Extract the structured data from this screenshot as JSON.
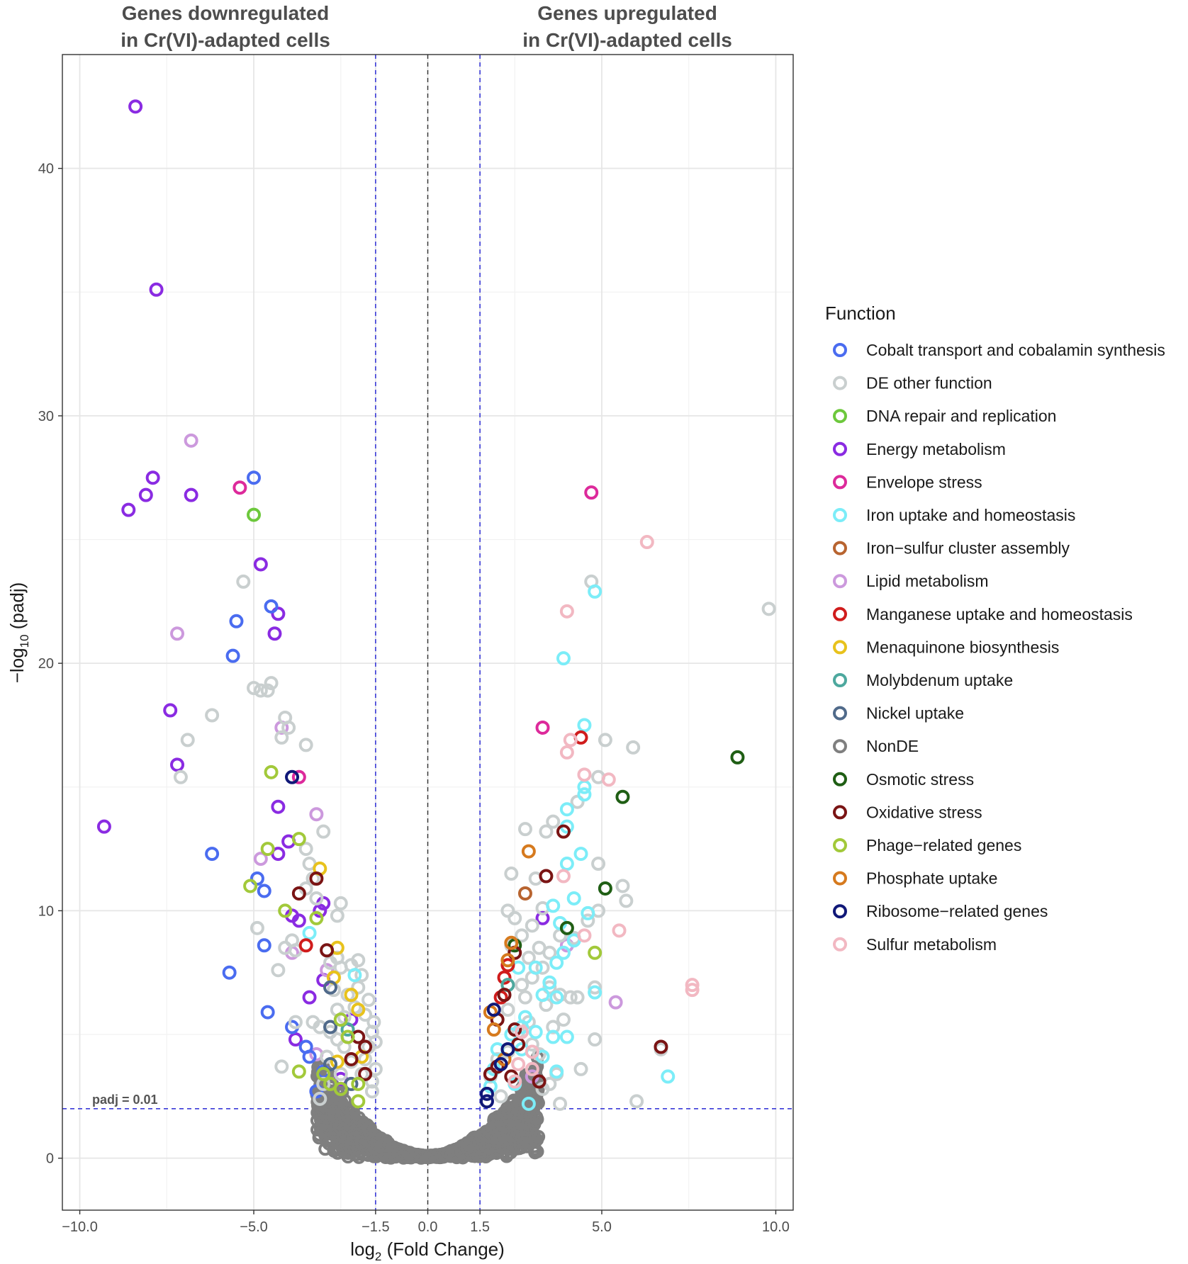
{
  "chart_data": {
    "type": "scatter",
    "subtype": "volcano",
    "header_left": [
      "Genes downregulated",
      "in Cr(VI)-adapted cells"
    ],
    "header_right": [
      "Genes upregulated",
      "in Cr(VI)-adapted cells"
    ],
    "xlabel": {
      "pre": "log",
      "sub": "2",
      "post": " (Fold Change)"
    },
    "ylabel": {
      "pre": "−log",
      "sub": "10",
      "post": " (padj)"
    },
    "xlim": [
      -10.5,
      10.5
    ],
    "ylim": [
      -2.1,
      44.6
    ],
    "x_ticks": [
      {
        "v": -10,
        "label": "−10.0"
      },
      {
        "v": -5,
        "label": "−5.0"
      },
      {
        "v": -1.5,
        "label": "−1.5"
      },
      {
        "v": 0,
        "label": "0.0"
      },
      {
        "v": 1.5,
        "label": "1.5"
      },
      {
        "v": 5,
        "label": "5.0"
      },
      {
        "v": 10,
        "label": "10.0"
      }
    ],
    "y_ticks": [
      {
        "v": 0,
        "label": "0"
      },
      {
        "v": 10,
        "label": "10"
      },
      {
        "v": 20,
        "label": "20"
      },
      {
        "v": 30,
        "label": "30"
      },
      {
        "v": 40,
        "label": "40"
      }
    ],
    "x_minor": [
      -7.5,
      -2.5,
      2.5,
      7.5
    ],
    "y_minor": [
      5,
      15,
      25,
      35
    ],
    "threshold_lines": {
      "fold_change": [
        -1.5,
        1.5
      ],
      "padj": 2,
      "center": 0
    },
    "threshold_label": "padj = 0.01",
    "legend_title": "Function",
    "categories": [
      {
        "name": "Cobalt transport and cobalamin synthesis",
        "color": "#4A6CF0"
      },
      {
        "name": "DE other function",
        "color": "#C9CFCF"
      },
      {
        "name": "DNA repair and replication",
        "color": "#6DC83C"
      },
      {
        "name": "Energy metabolism",
        "color": "#8A2BE2"
      },
      {
        "name": "Envelope stress",
        "color": "#DD2A9B"
      },
      {
        "name": "Iron uptake and homeostasis",
        "color": "#7CEDF8"
      },
      {
        "name": "Iron−sulfur cluster assembly",
        "color": "#B86430"
      },
      {
        "name": "Lipid metabolism",
        "color": "#CC99DD"
      },
      {
        "name": "Manganese uptake and homeostasis",
        "color": "#D01C1C"
      },
      {
        "name": "Menaquinone biosynthesis",
        "color": "#E8C21C"
      },
      {
        "name": "Molybdenum uptake",
        "color": "#4DA89E"
      },
      {
        "name": "Nickel uptake",
        "color": "#506A8A"
      },
      {
        "name": "NonDE",
        "color": "#7F7F7F"
      },
      {
        "name": "Osmotic stress",
        "color": "#1F5E14"
      },
      {
        "name": "Oxidative stress",
        "color": "#7A1414"
      },
      {
        "name": "Phage−related genes",
        "color": "#A2C93A"
      },
      {
        "name": "Phosphate uptake",
        "color": "#D67A1E"
      },
      {
        "name": "Ribosome−related genes",
        "color": "#101878"
      },
      {
        "name": "Sulfur metabolism",
        "color": "#F2B8C2"
      }
    ],
    "points": [
      [
        -8.4,
        42.5,
        3
      ],
      [
        -7.8,
        35.1,
        3
      ],
      [
        -8.6,
        26.2,
        3
      ],
      [
        -8.1,
        26.8,
        3
      ],
      [
        -7.9,
        27.5,
        3
      ],
      [
        -6.8,
        26.8,
        3
      ],
      [
        -9.3,
        13.4,
        3
      ],
      [
        -7.4,
        18.1,
        3
      ],
      [
        -7.2,
        15.9,
        3
      ],
      [
        -4.3,
        22.0,
        3
      ],
      [
        -4.8,
        24.0,
        3
      ],
      [
        -4.4,
        21.2,
        3
      ],
      [
        -4.3,
        14.2,
        3
      ],
      [
        -4.0,
        12.8,
        3
      ],
      [
        -4.3,
        12.3,
        3
      ],
      [
        -3.9,
        9.8,
        3
      ],
      [
        -3.7,
        9.6,
        3
      ],
      [
        -3.0,
        10.3,
        3
      ],
      [
        -3.1,
        10.0,
        3
      ],
      [
        -3.4,
        6.5,
        3
      ],
      [
        -3.0,
        7.2,
        3
      ],
      [
        -2.2,
        5.6,
        3
      ],
      [
        -3.8,
        4.8,
        3
      ],
      [
        -2.5,
        3.2,
        3
      ],
      [
        3.3,
        9.7,
        3
      ],
      [
        -6.8,
        29.0,
        7
      ],
      [
        -7.2,
        21.2,
        7
      ],
      [
        -4.2,
        17.4,
        7
      ],
      [
        -3.2,
        13.9,
        7
      ],
      [
        -4.8,
        12.1,
        7
      ],
      [
        -3.9,
        8.3,
        7
      ],
      [
        -3.2,
        4.2,
        7
      ],
      [
        -2.9,
        7.6,
        7
      ],
      [
        4.0,
        8.6,
        7
      ],
      [
        5.4,
        6.3,
        7
      ],
      [
        3.0,
        3.3,
        7
      ],
      [
        -5.0,
        27.5,
        0
      ],
      [
        -5.5,
        21.7,
        0
      ],
      [
        -5.6,
        20.3,
        0
      ],
      [
        -4.5,
        22.3,
        0
      ],
      [
        -6.2,
        12.3,
        0
      ],
      [
        -4.9,
        11.3,
        0
      ],
      [
        -4.7,
        10.8,
        0
      ],
      [
        -4.7,
        8.6,
        0
      ],
      [
        -5.7,
        7.5,
        0
      ],
      [
        -4.6,
        5.9,
        0
      ],
      [
        -3.9,
        5.3,
        0
      ],
      [
        -3.5,
        4.5,
        0
      ],
      [
        -3.4,
        4.1,
        0
      ],
      [
        -3.2,
        2.7,
        0
      ],
      [
        -3.0,
        3.5,
        0
      ],
      [
        -5.3,
        23.3,
        1
      ],
      [
        -5.0,
        19.0,
        1
      ],
      [
        -4.8,
        18.9,
        1
      ],
      [
        -4.5,
        19.2,
        1
      ],
      [
        -4.6,
        18.9,
        1
      ],
      [
        -6.2,
        17.9,
        1
      ],
      [
        -6.9,
        16.9,
        1
      ],
      [
        -7.1,
        15.4,
        1
      ],
      [
        -4.1,
        17.8,
        1
      ],
      [
        -4.0,
        17.4,
        1
      ],
      [
        -4.2,
        17.0,
        1
      ],
      [
        -3.5,
        16.7,
        1
      ],
      [
        -3.0,
        13.2,
        1
      ],
      [
        -3.5,
        12.5,
        1
      ],
      [
        -3.4,
        11.9,
        1
      ],
      [
        -3.3,
        11.3,
        1
      ],
      [
        -3.5,
        10.9,
        1
      ],
      [
        -3.2,
        10.5,
        1
      ],
      [
        -2.5,
        10.3,
        1
      ],
      [
        -2.6,
        9.8,
        1
      ],
      [
        -4.9,
        9.3,
        1
      ],
      [
        -3.9,
        8.8,
        1
      ],
      [
        -4.1,
        8.5,
        1
      ],
      [
        -3.8,
        8.4,
        1
      ],
      [
        -4.3,
        7.6,
        1
      ],
      [
        -2.6,
        8.1,
        1
      ],
      [
        -2.5,
        7.7,
        1
      ],
      [
        -2.8,
        7.9,
        1
      ],
      [
        -2.2,
        7.8,
        1
      ],
      [
        -2.0,
        8.0,
        1
      ],
      [
        -1.9,
        7.4,
        1
      ],
      [
        -2.0,
        6.9,
        1
      ],
      [
        -2.3,
        6.6,
        1
      ],
      [
        -2.7,
        6.8,
        1
      ],
      [
        -1.7,
        6.4,
        1
      ],
      [
        -2.1,
        6.1,
        1
      ],
      [
        -1.8,
        5.8,
        1
      ],
      [
        -2.6,
        6.0,
        1
      ],
      [
        -2.4,
        5.7,
        1
      ],
      [
        -3.8,
        5.5,
        1
      ],
      [
        -3.3,
        5.5,
        1
      ],
      [
        -3.1,
        5.3,
        1
      ],
      [
        -2.8,
        5.1,
        1
      ],
      [
        -2.6,
        4.8,
        1
      ],
      [
        -1.6,
        5.1,
        1
      ],
      [
        -2.4,
        4.5,
        1
      ],
      [
        -2.9,
        4.1,
        1
      ],
      [
        -2.2,
        3.9,
        1
      ],
      [
        -1.8,
        4.0,
        1
      ],
      [
        -4.2,
        3.7,
        1
      ],
      [
        -2.5,
        3.4,
        1
      ],
      [
        -3.0,
        3.0,
        1
      ],
      [
        -3.1,
        2.4,
        1
      ],
      [
        -1.6,
        2.7,
        1
      ],
      [
        -1.9,
        3.4,
        1
      ],
      [
        -1.7,
        4.5,
        1
      ],
      [
        -1.5,
        4.7,
        1
      ],
      [
        -1.55,
        5.5,
        1
      ],
      [
        -1.5,
        3.6,
        1
      ],
      [
        -1.6,
        3.1,
        1
      ],
      [
        4.7,
        23.3,
        1
      ],
      [
        5.1,
        16.9,
        1
      ],
      [
        5.9,
        16.6,
        1
      ],
      [
        4.9,
        15.4,
        1
      ],
      [
        4.3,
        14.4,
        1
      ],
      [
        3.6,
        13.6,
        1
      ],
      [
        2.8,
        13.3,
        1
      ],
      [
        3.4,
        13.2,
        1
      ],
      [
        2.4,
        11.5,
        1
      ],
      [
        3.1,
        11.3,
        1
      ],
      [
        4.9,
        11.9,
        1
      ],
      [
        5.6,
        11.0,
        1
      ],
      [
        5.7,
        10.4,
        1
      ],
      [
        2.3,
        10.0,
        1
      ],
      [
        2.5,
        9.7,
        1
      ],
      [
        3.0,
        9.4,
        1
      ],
      [
        3.3,
        10.1,
        1
      ],
      [
        4.6,
        9.6,
        1
      ],
      [
        4.9,
        10.0,
        1
      ],
      [
        3.8,
        9.0,
        1
      ],
      [
        2.7,
        9.0,
        1
      ],
      [
        3.2,
        8.5,
        1
      ],
      [
        3.5,
        8.3,
        1
      ],
      [
        2.9,
        8.1,
        1
      ],
      [
        2.4,
        8.6,
        1
      ],
      [
        4.2,
        8.9,
        1
      ],
      [
        3.3,
        7.7,
        1
      ],
      [
        3.5,
        6.9,
        1
      ],
      [
        3.0,
        7.3,
        1
      ],
      [
        2.7,
        7.0,
        1
      ],
      [
        3.8,
        6.6,
        1
      ],
      [
        4.3,
        6.5,
        1
      ],
      [
        4.1,
        6.5,
        1
      ],
      [
        4.8,
        6.9,
        1
      ],
      [
        3.4,
        6.2,
        1
      ],
      [
        2.8,
        6.5,
        1
      ],
      [
        2.3,
        6.0,
        1
      ],
      [
        3.9,
        5.6,
        1
      ],
      [
        3.6,
        5.3,
        1
      ],
      [
        2.9,
        5.5,
        1
      ],
      [
        2.6,
        5.1,
        1
      ],
      [
        3.0,
        4.6,
        1
      ],
      [
        2.3,
        4.3,
        1
      ],
      [
        3.2,
        4.2,
        1
      ],
      [
        4.8,
        4.8,
        1
      ],
      [
        4.4,
        3.6,
        1
      ],
      [
        3.7,
        3.4,
        1
      ],
      [
        3.5,
        3.0,
        1
      ],
      [
        3.3,
        2.8,
        1
      ],
      [
        2.1,
        2.5,
        1
      ],
      [
        3.8,
        2.2,
        1
      ],
      [
        1.8,
        3.3,
        1
      ],
      [
        2.0,
        4.0,
        1
      ],
      [
        9.8,
        22.2,
        1
      ],
      [
        6.0,
        2.3,
        1
      ],
      [
        6.7,
        4.4,
        1
      ],
      [
        -5.0,
        26.0,
        2
      ],
      [
        -5.4,
        27.1,
        4
      ],
      [
        -3.7,
        15.4,
        4
      ],
      [
        3.3,
        17.4,
        4
      ],
      [
        4.7,
        26.9,
        4
      ],
      [
        -3.4,
        9.1,
        5
      ],
      [
        -2.1,
        7.4,
        5
      ],
      [
        4.8,
        22.9,
        5
      ],
      [
        3.9,
        20.2,
        5
      ],
      [
        4.5,
        17.5,
        5
      ],
      [
        4.5,
        15.0,
        5
      ],
      [
        4.5,
        14.7,
        5
      ],
      [
        4.0,
        14.1,
        5
      ],
      [
        4.0,
        13.4,
        5
      ],
      [
        4.4,
        12.3,
        5
      ],
      [
        4.0,
        11.9,
        5
      ],
      [
        3.6,
        10.2,
        5
      ],
      [
        4.2,
        10.5,
        5
      ],
      [
        4.6,
        9.9,
        5
      ],
      [
        3.8,
        9.5,
        5
      ],
      [
        3.9,
        8.3,
        5
      ],
      [
        3.7,
        7.9,
        5
      ],
      [
        3.1,
        7.7,
        5
      ],
      [
        2.6,
        7.7,
        5
      ],
      [
        3.5,
        7.1,
        5
      ],
      [
        4.2,
        8.8,
        5
      ],
      [
        3.3,
        6.6,
        5
      ],
      [
        3.7,
        6.5,
        5
      ],
      [
        4.8,
        6.7,
        5
      ],
      [
        2.8,
        5.7,
        5
      ],
      [
        2.7,
        5.3,
        5
      ],
      [
        3.1,
        5.1,
        5
      ],
      [
        2.4,
        5.0,
        5
      ],
      [
        3.6,
        4.9,
        5
      ],
      [
        2.7,
        4.4,
        5
      ],
      [
        3.3,
        4.1,
        5
      ],
      [
        2.2,
        4.0,
        5
      ],
      [
        4.0,
        4.9,
        5
      ],
      [
        3.7,
        3.5,
        5
      ],
      [
        2.5,
        3.0,
        5
      ],
      [
        2.9,
        2.2,
        5
      ],
      [
        1.8,
        2.9,
        5
      ],
      [
        1.9,
        3.6,
        5
      ],
      [
        2.0,
        4.4,
        5
      ],
      [
        6.9,
        3.3,
        5
      ],
      [
        2.8,
        10.7,
        6
      ],
      [
        -3.5,
        8.6,
        8
      ],
      [
        4.4,
        17.0,
        8
      ],
      [
        2.3,
        7.8,
        8
      ],
      [
        2.2,
        7.3,
        8
      ],
      [
        2.1,
        6.5,
        8
      ],
      [
        -3.1,
        11.7,
        9
      ],
      [
        -2.6,
        8.5,
        9
      ],
      [
        -2.7,
        7.3,
        9
      ],
      [
        -2.2,
        6.6,
        9
      ],
      [
        -2.0,
        6.0,
        9
      ],
      [
        -1.9,
        4.1,
        9
      ],
      [
        -2.6,
        3.9,
        9
      ],
      [
        -2.3,
        5.2,
        10
      ],
      [
        2.3,
        7.0,
        10
      ],
      [
        -2.8,
        6.9,
        11
      ],
      [
        -2.8,
        5.3,
        11
      ],
      [
        -2.8,
        3.8,
        11
      ],
      [
        -2.2,
        3.0,
        11
      ],
      [
        8.9,
        16.2,
        13
      ],
      [
        5.6,
        14.6,
        13
      ],
      [
        5.1,
        10.9,
        13
      ],
      [
        4.0,
        9.3,
        13
      ],
      [
        2.5,
        8.6,
        13
      ],
      [
        -3.7,
        10.7,
        14
      ],
      [
        -3.2,
        11.3,
        14
      ],
      [
        -2.9,
        8.4,
        14
      ],
      [
        -2.0,
        4.9,
        14
      ],
      [
        -2.2,
        4.0,
        14
      ],
      [
        -1.8,
        3.4,
        14
      ],
      [
        -1.8,
        4.5,
        14
      ],
      [
        3.4,
        11.4,
        14
      ],
      [
        3.9,
        13.2,
        14
      ],
      [
        2.5,
        8.3,
        14
      ],
      [
        2.2,
        6.6,
        14
      ],
      [
        2.5,
        5.2,
        14
      ],
      [
        2.0,
        5.6,
        14
      ],
      [
        2.6,
        4.6,
        14
      ],
      [
        2.4,
        3.3,
        14
      ],
      [
        3.2,
        3.1,
        14
      ],
      [
        1.8,
        3.4,
        14
      ],
      [
        2.0,
        3.7,
        14
      ],
      [
        6.7,
        4.5,
        14
      ],
      [
        -4.5,
        15.6,
        15
      ],
      [
        -4.6,
        12.5,
        15
      ],
      [
        -5.1,
        11.0,
        15
      ],
      [
        -4.1,
        10.0,
        15
      ],
      [
        -3.7,
        12.9,
        15
      ],
      [
        -3.2,
        9.7,
        15
      ],
      [
        -2.5,
        5.6,
        15
      ],
      [
        -2.3,
        4.9,
        15
      ],
      [
        -3.7,
        3.5,
        15
      ],
      [
        -3.0,
        3.4,
        15
      ],
      [
        -2.8,
        3.0,
        15
      ],
      [
        -2.5,
        2.8,
        15
      ],
      [
        -2.0,
        3.0,
        15
      ],
      [
        -2.0,
        2.3,
        15
      ],
      [
        4.8,
        8.3,
        15
      ],
      [
        2.9,
        12.4,
        16
      ],
      [
        2.4,
        8.7,
        16
      ],
      [
        2.3,
        8.0,
        16
      ],
      [
        1.8,
        5.9,
        16
      ],
      [
        1.9,
        5.2,
        16
      ],
      [
        2.2,
        4.0,
        16
      ],
      [
        -3.9,
        15.4,
        17
      ],
      [
        1.9,
        6.0,
        17
      ],
      [
        2.1,
        3.8,
        17
      ],
      [
        2.3,
        4.4,
        17
      ],
      [
        1.7,
        2.6,
        17
      ],
      [
        1.7,
        2.3,
        17
      ],
      [
        6.3,
        24.9,
        18
      ],
      [
        4.0,
        22.1,
        18
      ],
      [
        4.0,
        16.4,
        18
      ],
      [
        4.1,
        16.9,
        18
      ],
      [
        4.5,
        15.5,
        18
      ],
      [
        5.2,
        15.3,
        18
      ],
      [
        3.9,
        11.4,
        18
      ],
      [
        5.5,
        9.2,
        18
      ],
      [
        4.5,
        9.0,
        18
      ],
      [
        7.6,
        7.0,
        18
      ],
      [
        7.6,
        6.8,
        18
      ],
      [
        2.7,
        5.1,
        18
      ],
      [
        3.0,
        4.3,
        18
      ],
      [
        2.6,
        3.8,
        18
      ],
      [
        2.5,
        3.1,
        18
      ],
      [
        3.0,
        3.6,
        18
      ]
    ]
  }
}
